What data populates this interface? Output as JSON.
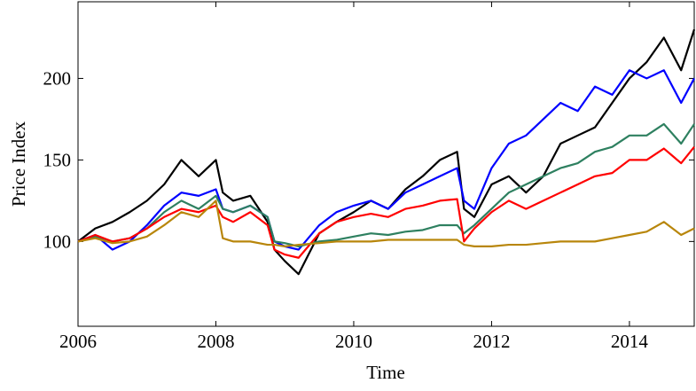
{
  "chart_data": {
    "type": "line",
    "x_label": "Time",
    "y_label": "Price Index",
    "x": [
      2006,
      2006.25,
      2006.5,
      2006.75,
      2007,
      2007.25,
      2007.5,
      2007.75,
      2008,
      2008.1,
      2008.25,
      2008.5,
      2008.75,
      2008.85,
      2009,
      2009.2,
      2009.5,
      2009.75,
      2010,
      2010.25,
      2010.5,
      2010.75,
      2011,
      2011.25,
      2011.5,
      2011.6,
      2011.75,
      2012,
      2012.25,
      2012.5,
      2012.75,
      2013,
      2013.25,
      2013.5,
      2013.75,
      2014,
      2014.25,
      2014.5,
      2014.75,
      2014.94
    ],
    "series": [
      {
        "color": "#000000",
        "values": [
          100,
          108,
          112,
          118,
          125,
          135,
          150,
          140,
          150,
          130,
          125,
          128,
          112,
          95,
          88,
          80,
          105,
          112,
          118,
          125,
          120,
          132,
          140,
          150,
          155,
          120,
          115,
          135,
          140,
          130,
          140,
          160,
          165,
          170,
          185,
          200,
          210,
          225,
          205,
          230
        ]
      },
      {
        "color": "#0000ff",
        "values": [
          100,
          104,
          95,
          100,
          110,
          122,
          130,
          128,
          132,
          120,
          118,
          122,
          115,
          100,
          97,
          95,
          110,
          118,
          122,
          125,
          120,
          130,
          135,
          140,
          145,
          125,
          120,
          145,
          160,
          165,
          175,
          185,
          180,
          195,
          190,
          205,
          200,
          205,
          185,
          200
        ]
      },
      {
        "color": "#2e8060",
        "values": [
          100,
          103,
          100,
          102,
          108,
          118,
          125,
          120,
          128,
          120,
          118,
          122,
          115,
          100,
          99,
          97,
          100,
          101,
          103,
          105,
          104,
          106,
          107,
          110,
          110,
          105,
          110,
          120,
          130,
          135,
          140,
          145,
          148,
          155,
          158,
          165,
          165,
          172,
          160,
          172
        ]
      },
      {
        "color": "#ff0000",
        "values": [
          100,
          104,
          100,
          102,
          108,
          115,
          120,
          118,
          122,
          115,
          112,
          118,
          110,
          95,
          92,
          90,
          105,
          112,
          115,
          117,
          115,
          120,
          122,
          125,
          126,
          100,
          108,
          118,
          125,
          120,
          125,
          130,
          135,
          140,
          142,
          150,
          150,
          157,
          148,
          158
        ]
      },
      {
        "color": "#b8860b",
        "values": [
          100,
          102,
          99,
          100,
          103,
          110,
          118,
          115,
          125,
          102,
          100,
          100,
          98,
          98,
          97,
          98,
          99,
          100,
          100,
          100,
          101,
          101,
          101,
          101,
          101,
          98,
          97,
          97,
          98,
          98,
          99,
          100,
          100,
          100,
          102,
          104,
          106,
          112,
          104,
          108
        ]
      }
    ],
    "xlim": [
      2006,
      2014.94
    ],
    "xticks": [
      2006,
      2008,
      2010,
      2012,
      2014
    ],
    "ylim": [
      48,
      247
    ],
    "yticks": [
      100,
      150,
      200
    ],
    "grid": false
  }
}
